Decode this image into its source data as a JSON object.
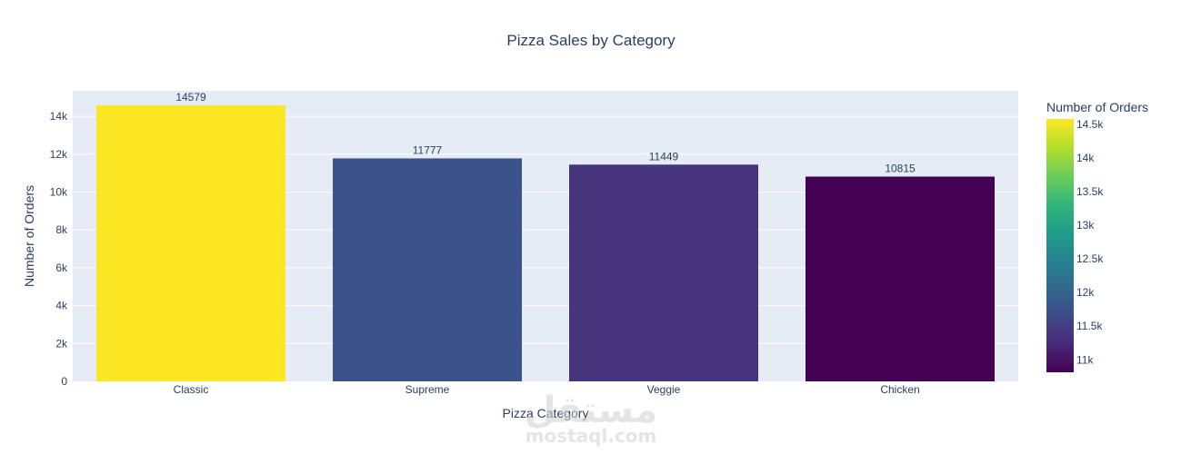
{
  "chart_data": {
    "type": "bar",
    "title": "Pizza Sales by Category",
    "xlabel": "Pizza Category",
    "ylabel": "Number of Orders",
    "categories": [
      "Classic",
      "Supreme",
      "Veggie",
      "Chicken"
    ],
    "values": [
      14579,
      11777,
      11449,
      10815
    ],
    "data_labels": [
      "14579",
      "11777",
      "11449",
      "10815"
    ],
    "ylim": [
      0,
      14579
    ],
    "yticks": [
      0,
      2000,
      4000,
      6000,
      8000,
      10000,
      12000,
      14000
    ],
    "ytick_labels": [
      "0",
      "2k",
      "4k",
      "6k",
      "8k",
      "10k",
      "12k",
      "14k"
    ],
    "grid": true,
    "plot_background": "#e5ecf6",
    "colorscale": "viridis",
    "bar_colors": [
      "#fde725",
      "#3b528b",
      "#46357d",
      "#440154"
    ],
    "colorbar": {
      "title": "Number of Orders",
      "range": [
        10815,
        14579
      ],
      "ticks": [
        11000,
        11500,
        12000,
        12500,
        13000,
        13500,
        14000,
        14500
      ],
      "tick_labels": [
        "11k",
        "11.5k",
        "12k",
        "12.5k",
        "13k",
        "13.5k",
        "14k",
        "14.5k"
      ],
      "placement": "right"
    }
  },
  "watermark": {
    "arabic": "مستقل",
    "latin": "mostaql.com"
  }
}
